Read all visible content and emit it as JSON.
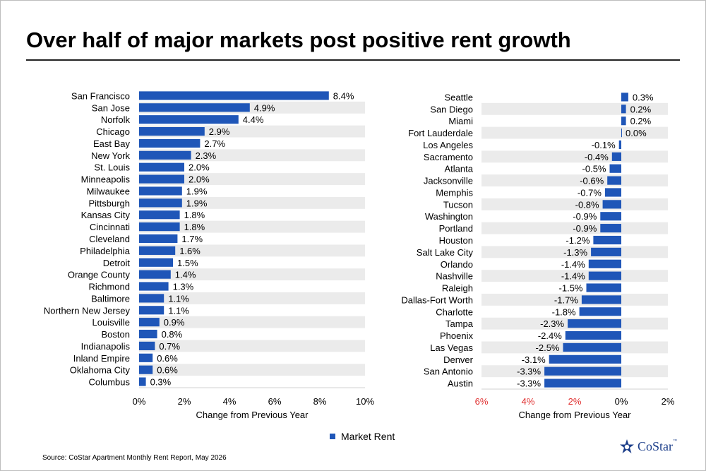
{
  "title": "Over half of major markets post positive rent growth",
  "source": "Source: CoStar Apartment Monthly Rent Report, May 2026",
  "legend": {
    "label": "Market Rent",
    "color": "#1f56b8"
  },
  "logo": {
    "text": "CoStar",
    "tm": "™"
  },
  "chart_data": [
    {
      "type": "bar",
      "orientation": "horizontal",
      "xlabel": "Change from Previous Year",
      "xlim": [
        0,
        10
      ],
      "xticks": [
        "0%",
        "2%",
        "4%",
        "6%",
        "8%",
        "10%"
      ],
      "categories": [
        "San Francisco",
        "San Jose",
        "Norfolk",
        "Chicago",
        "East Bay",
        "New York",
        "St. Louis",
        "Minneapolis",
        "Milwaukee",
        "Pittsburgh",
        "Kansas City",
        "Cincinnati",
        "Cleveland",
        "Philadelphia",
        "Detroit",
        "Orange County",
        "Richmond",
        "Baltimore",
        "Northern New Jersey",
        "Louisville",
        "Boston",
        "Indianapolis",
        "Inland Empire",
        "Oklahoma City",
        "Columbus"
      ],
      "values": [
        8.4,
        4.9,
        4.4,
        2.9,
        2.7,
        2.3,
        2.0,
        2.0,
        1.9,
        1.9,
        1.8,
        1.8,
        1.7,
        1.6,
        1.5,
        1.4,
        1.3,
        1.1,
        1.1,
        0.9,
        0.8,
        0.7,
        0.6,
        0.6,
        0.3
      ],
      "labels": [
        "8.4%",
        "4.9%",
        "4.4%",
        "2.9%",
        "2.7%",
        "2.3%",
        "2.0%",
        "2.0%",
        "1.9%",
        "1.9%",
        "1.8%",
        "1.8%",
        "1.7%",
        "1.6%",
        "1.5%",
        "1.4%",
        "1.3%",
        "1.1%",
        "1.1%",
        "0.9%",
        "0.8%",
        "0.7%",
        "0.6%",
        "0.6%",
        "0.3%"
      ]
    },
    {
      "type": "bar",
      "orientation": "horizontal",
      "xlabel": "Change from Previous Year",
      "xlim": [
        -6,
        2
      ],
      "xticks": [
        "6%",
        "4%",
        "2%",
        "0%",
        "2%"
      ],
      "xtick_colors": [
        "#e03030",
        "#e03030",
        "#e03030",
        "#000000",
        "#000000"
      ],
      "categories": [
        "Seattle",
        "San Diego",
        "Miami",
        "Fort Lauderdale",
        "Los Angeles",
        "Sacramento",
        "Atlanta",
        "Jacksonville",
        "Memphis",
        "Tucson",
        "Washington",
        "Portland",
        "Houston",
        "Salt Lake City",
        "Orlando",
        "Nashville",
        "Raleigh",
        "Dallas-Fort Worth",
        "Charlotte",
        "Tampa",
        "Phoenix",
        "Las Vegas",
        "Denver",
        "San Antonio",
        "Austin"
      ],
      "values": [
        0.3,
        0.2,
        0.2,
        0.0,
        -0.1,
        -0.4,
        -0.5,
        -0.6,
        -0.7,
        -0.8,
        -0.9,
        -0.9,
        -1.2,
        -1.3,
        -1.4,
        -1.4,
        -1.5,
        -1.7,
        -1.8,
        -2.3,
        -2.4,
        -2.5,
        -3.1,
        -3.3,
        -3.3
      ],
      "labels": [
        "0.3%",
        "0.2%",
        "0.2%",
        "0.0%",
        "-0.1%",
        "-0.4%",
        "-0.5%",
        "-0.6%",
        "-0.7%",
        "-0.8%",
        "-0.9%",
        "-0.9%",
        "-1.2%",
        "-1.3%",
        "-1.4%",
        "-1.4%",
        "-1.5%",
        "-1.7%",
        "-1.8%",
        "-2.3%",
        "-2.4%",
        "-2.5%",
        "-3.1%",
        "-3.3%",
        "-3.3%"
      ]
    }
  ]
}
